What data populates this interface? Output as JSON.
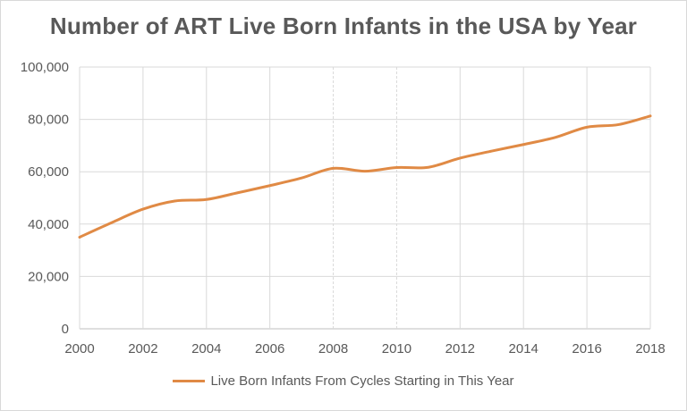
{
  "chart_data": {
    "type": "line",
    "title": "Number of ART Live Born Infants in the USA by Year",
    "xlabel": "",
    "ylabel": "",
    "x_ticks": [
      "2000",
      "2002",
      "2004",
      "2006",
      "2008",
      "2010",
      "2012",
      "2014",
      "2016",
      "2018"
    ],
    "y_ticks": [
      "0",
      "20,000",
      "40,000",
      "60,000",
      "80,000",
      "100,000"
    ],
    "xlim": [
      2000,
      2018
    ],
    "ylim": [
      0,
      100000
    ],
    "grid": true,
    "legend_position": "bottom",
    "series": [
      {
        "name": "Live Born Infants From Cycles Starting in This Year",
        "color": "#e08a45",
        "x": [
          2000,
          2001,
          2002,
          2003,
          2004,
          2005,
          2006,
          2007,
          2008,
          2009,
          2010,
          2011,
          2012,
          2013,
          2014,
          2015,
          2016,
          2017,
          2018
        ],
        "values": [
          35000,
          40500,
          45700,
          48800,
          49400,
          52000,
          54700,
          57600,
          61300,
          60200,
          61600,
          61700,
          65200,
          67900,
          70400,
          73100,
          77000,
          78000,
          81300
        ]
      }
    ]
  }
}
